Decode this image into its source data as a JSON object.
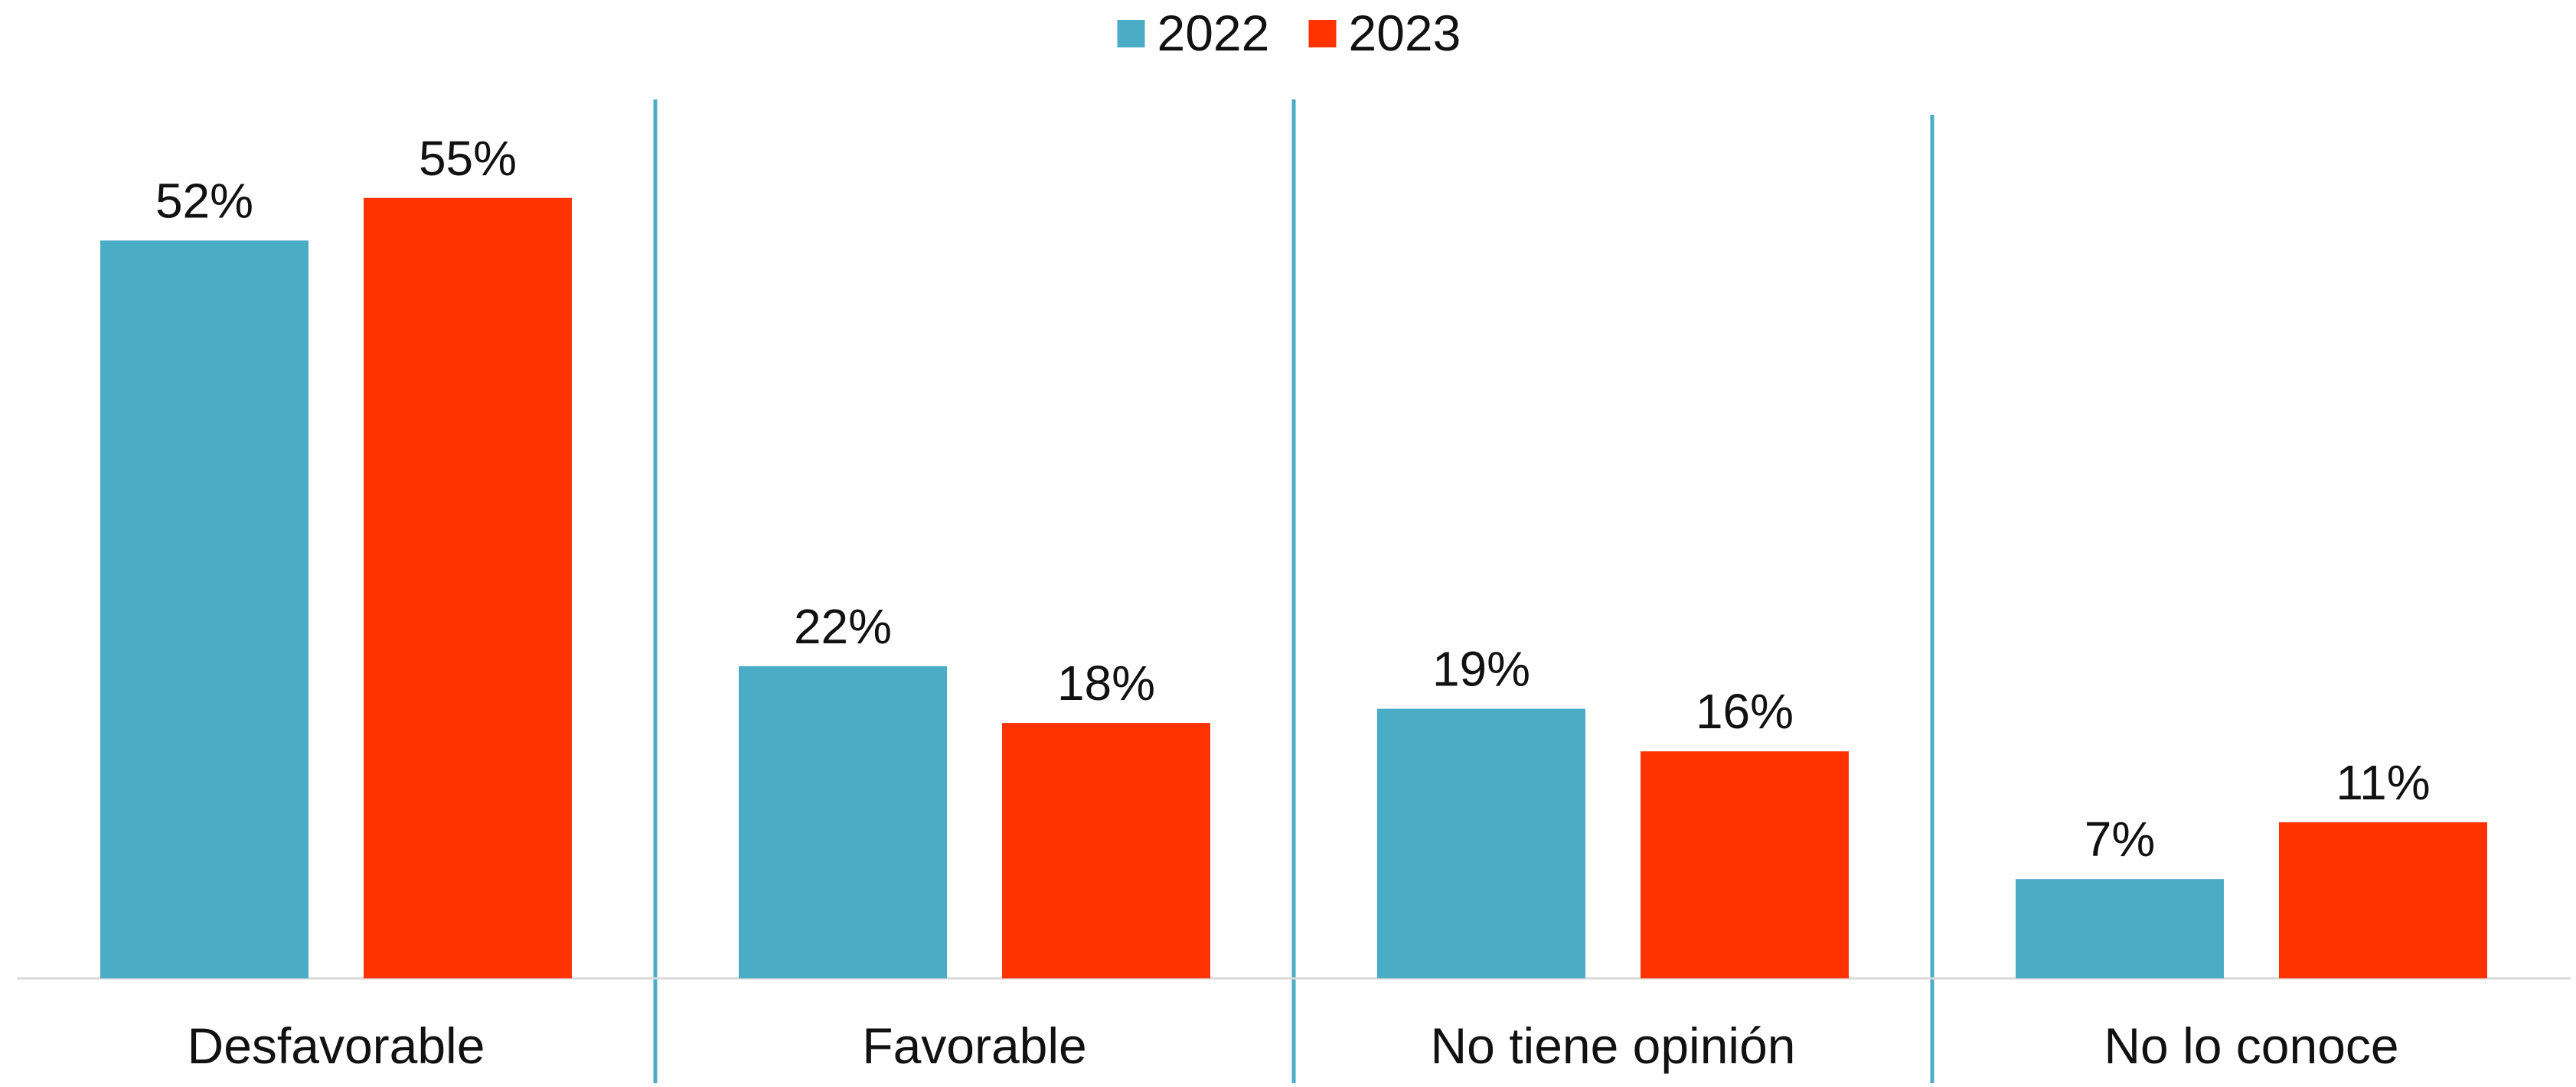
{
  "chart_data": {
    "type": "bar",
    "title": "",
    "xlabel": "",
    "ylabel": "",
    "categories": [
      "Desfavorable",
      "Favorable",
      "No tiene opinión",
      "No lo conoce"
    ],
    "series": [
      {
        "name": "2022",
        "color": "#4BACC6",
        "values": [
          52,
          22,
          19,
          7
        ],
        "labels": [
          "52%",
          "22%",
          "19%",
          "7%"
        ]
      },
      {
        "name": "2023",
        "color": "#FF3300",
        "values": [
          55,
          18,
          16,
          11
        ],
        "labels": [
          "55%",
          "18%",
          "16%",
          "11%"
        ]
      }
    ],
    "ylim": [
      0,
      60
    ],
    "legend": "top-center",
    "grid": false,
    "separators": true,
    "separator_color": "#4BACC6",
    "axis_color": "#D9D9D9"
  }
}
